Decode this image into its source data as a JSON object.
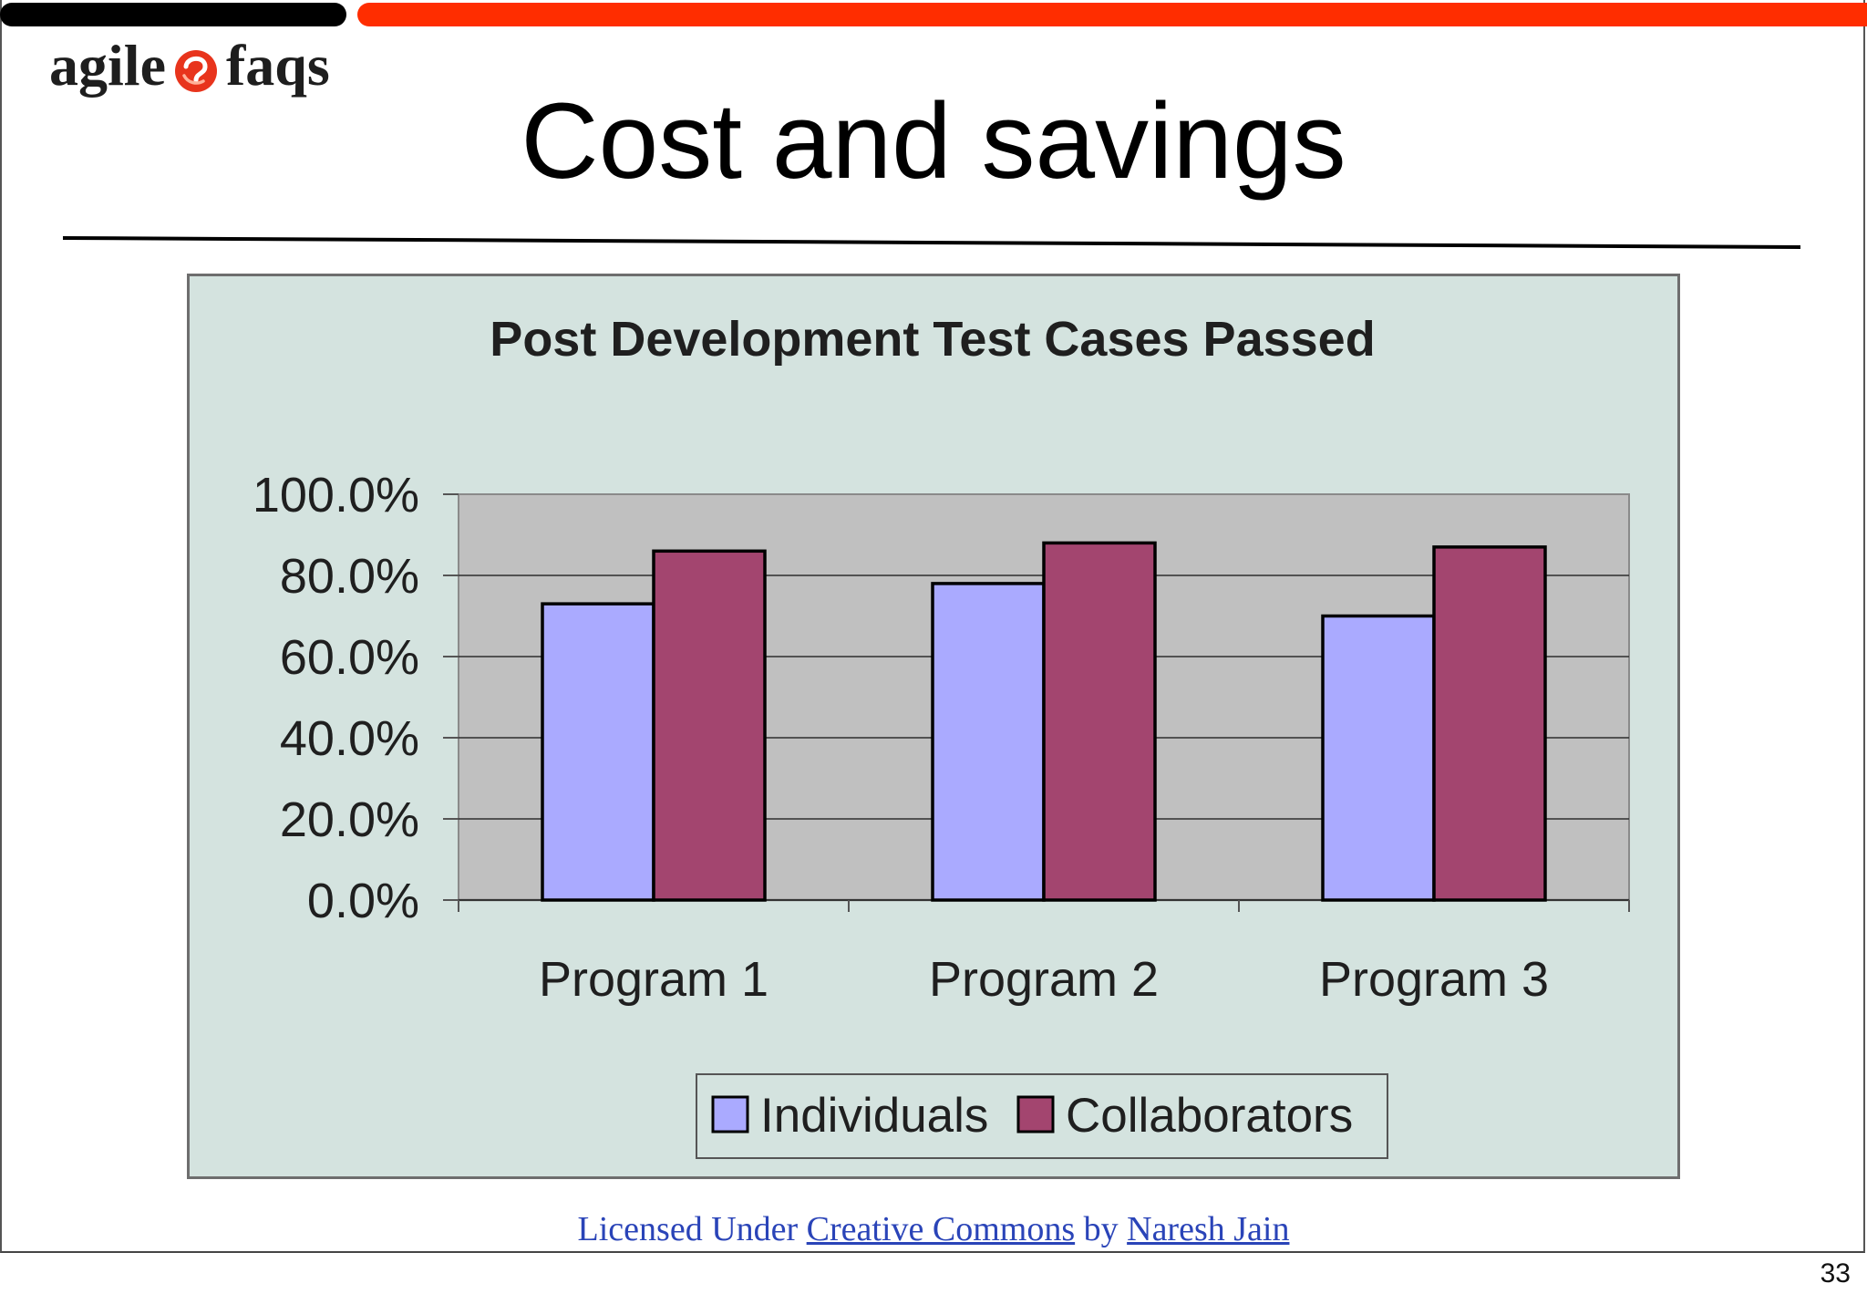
{
  "colors": {
    "top_bar_dark": "#000000",
    "top_bar_accent": "#ff2d00",
    "logo_icon": "#e8341c",
    "chart_background": "#d4e3df",
    "plot_background": "#c0c0c0",
    "footer_link": "#2a44b8"
  },
  "logo": {
    "left_word": "agile",
    "right_word": "faqs",
    "icon": "swirl-logo-icon"
  },
  "title": "Cost and savings",
  "chart_data": {
    "type": "bar",
    "title": "Post Development Test Cases Passed",
    "xlabel": "",
    "ylabel": "",
    "categories": [
      "Program 1",
      "Program 2",
      "Program 3"
    ],
    "series": [
      {
        "name": "Individuals",
        "values": [
          73,
          78,
          70
        ],
        "color": "#aaaaff"
      },
      {
        "name": "Collaborators",
        "values": [
          86,
          88,
          87
        ],
        "color": "#a3456f"
      }
    ],
    "y_ticks": [
      0,
      20,
      40,
      60,
      80,
      100
    ],
    "y_tick_labels": [
      "0.0%",
      "20.0%",
      "40.0%",
      "60.0%",
      "80.0%",
      "100.0%"
    ],
    "ylim": [
      0,
      100
    ],
    "grid": true,
    "legend_position": "bottom"
  },
  "footer": {
    "prefix": "Licensed Under",
    "link_license": "Creative Commons",
    "connector": "by",
    "link_author": "Naresh Jain"
  },
  "page_number": "33"
}
